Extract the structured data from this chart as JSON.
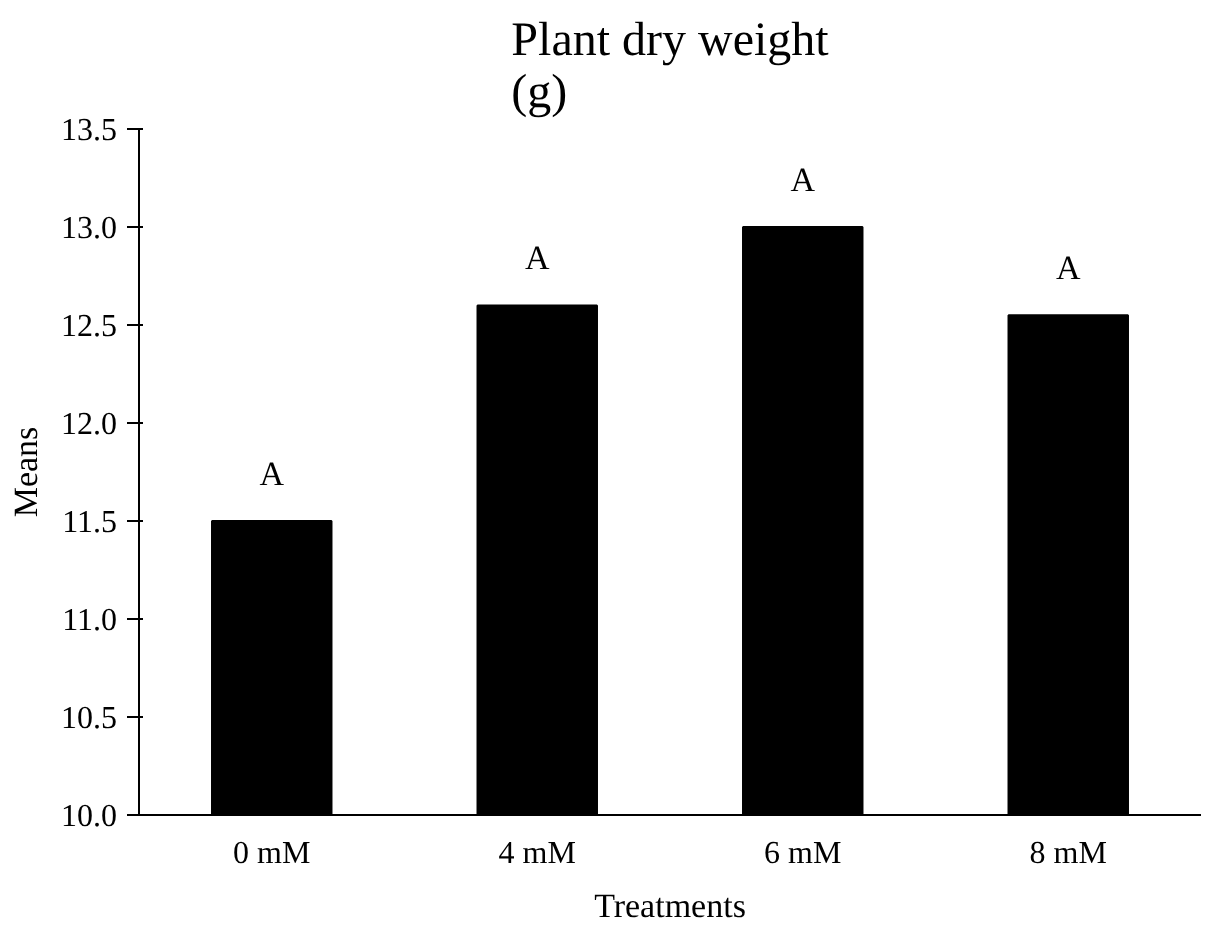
{
  "chart_data": {
    "type": "bar",
    "title": "Plant dry weight\n(g)",
    "xlabel": "Treatments",
    "ylabel": "Means",
    "categories": [
      "0 mM",
      "4 mM",
      "6 mM",
      "8 mM"
    ],
    "values": [
      11.5,
      12.6,
      13.0,
      12.55
    ],
    "color": "#000000",
    "ylim": [
      10.0,
      13.5
    ],
    "yticks": [
      {
        "value": 10,
        "label": "10.0"
      },
      {
        "value": 10.5,
        "label": "10.5"
      },
      {
        "value": 11,
        "label": "11.0"
      },
      {
        "value": 11.5,
        "label": "11.5"
      },
      {
        "value": 12,
        "label": "12.0"
      },
      {
        "value": 12.5,
        "label": "12.5"
      },
      {
        "value": 13,
        "label": "13.0"
      },
      {
        "value": 13.5,
        "label": "13.5"
      }
    ],
    "grid": false,
    "annotations": [
      "A",
      "A",
      "A",
      "A"
    ]
  }
}
